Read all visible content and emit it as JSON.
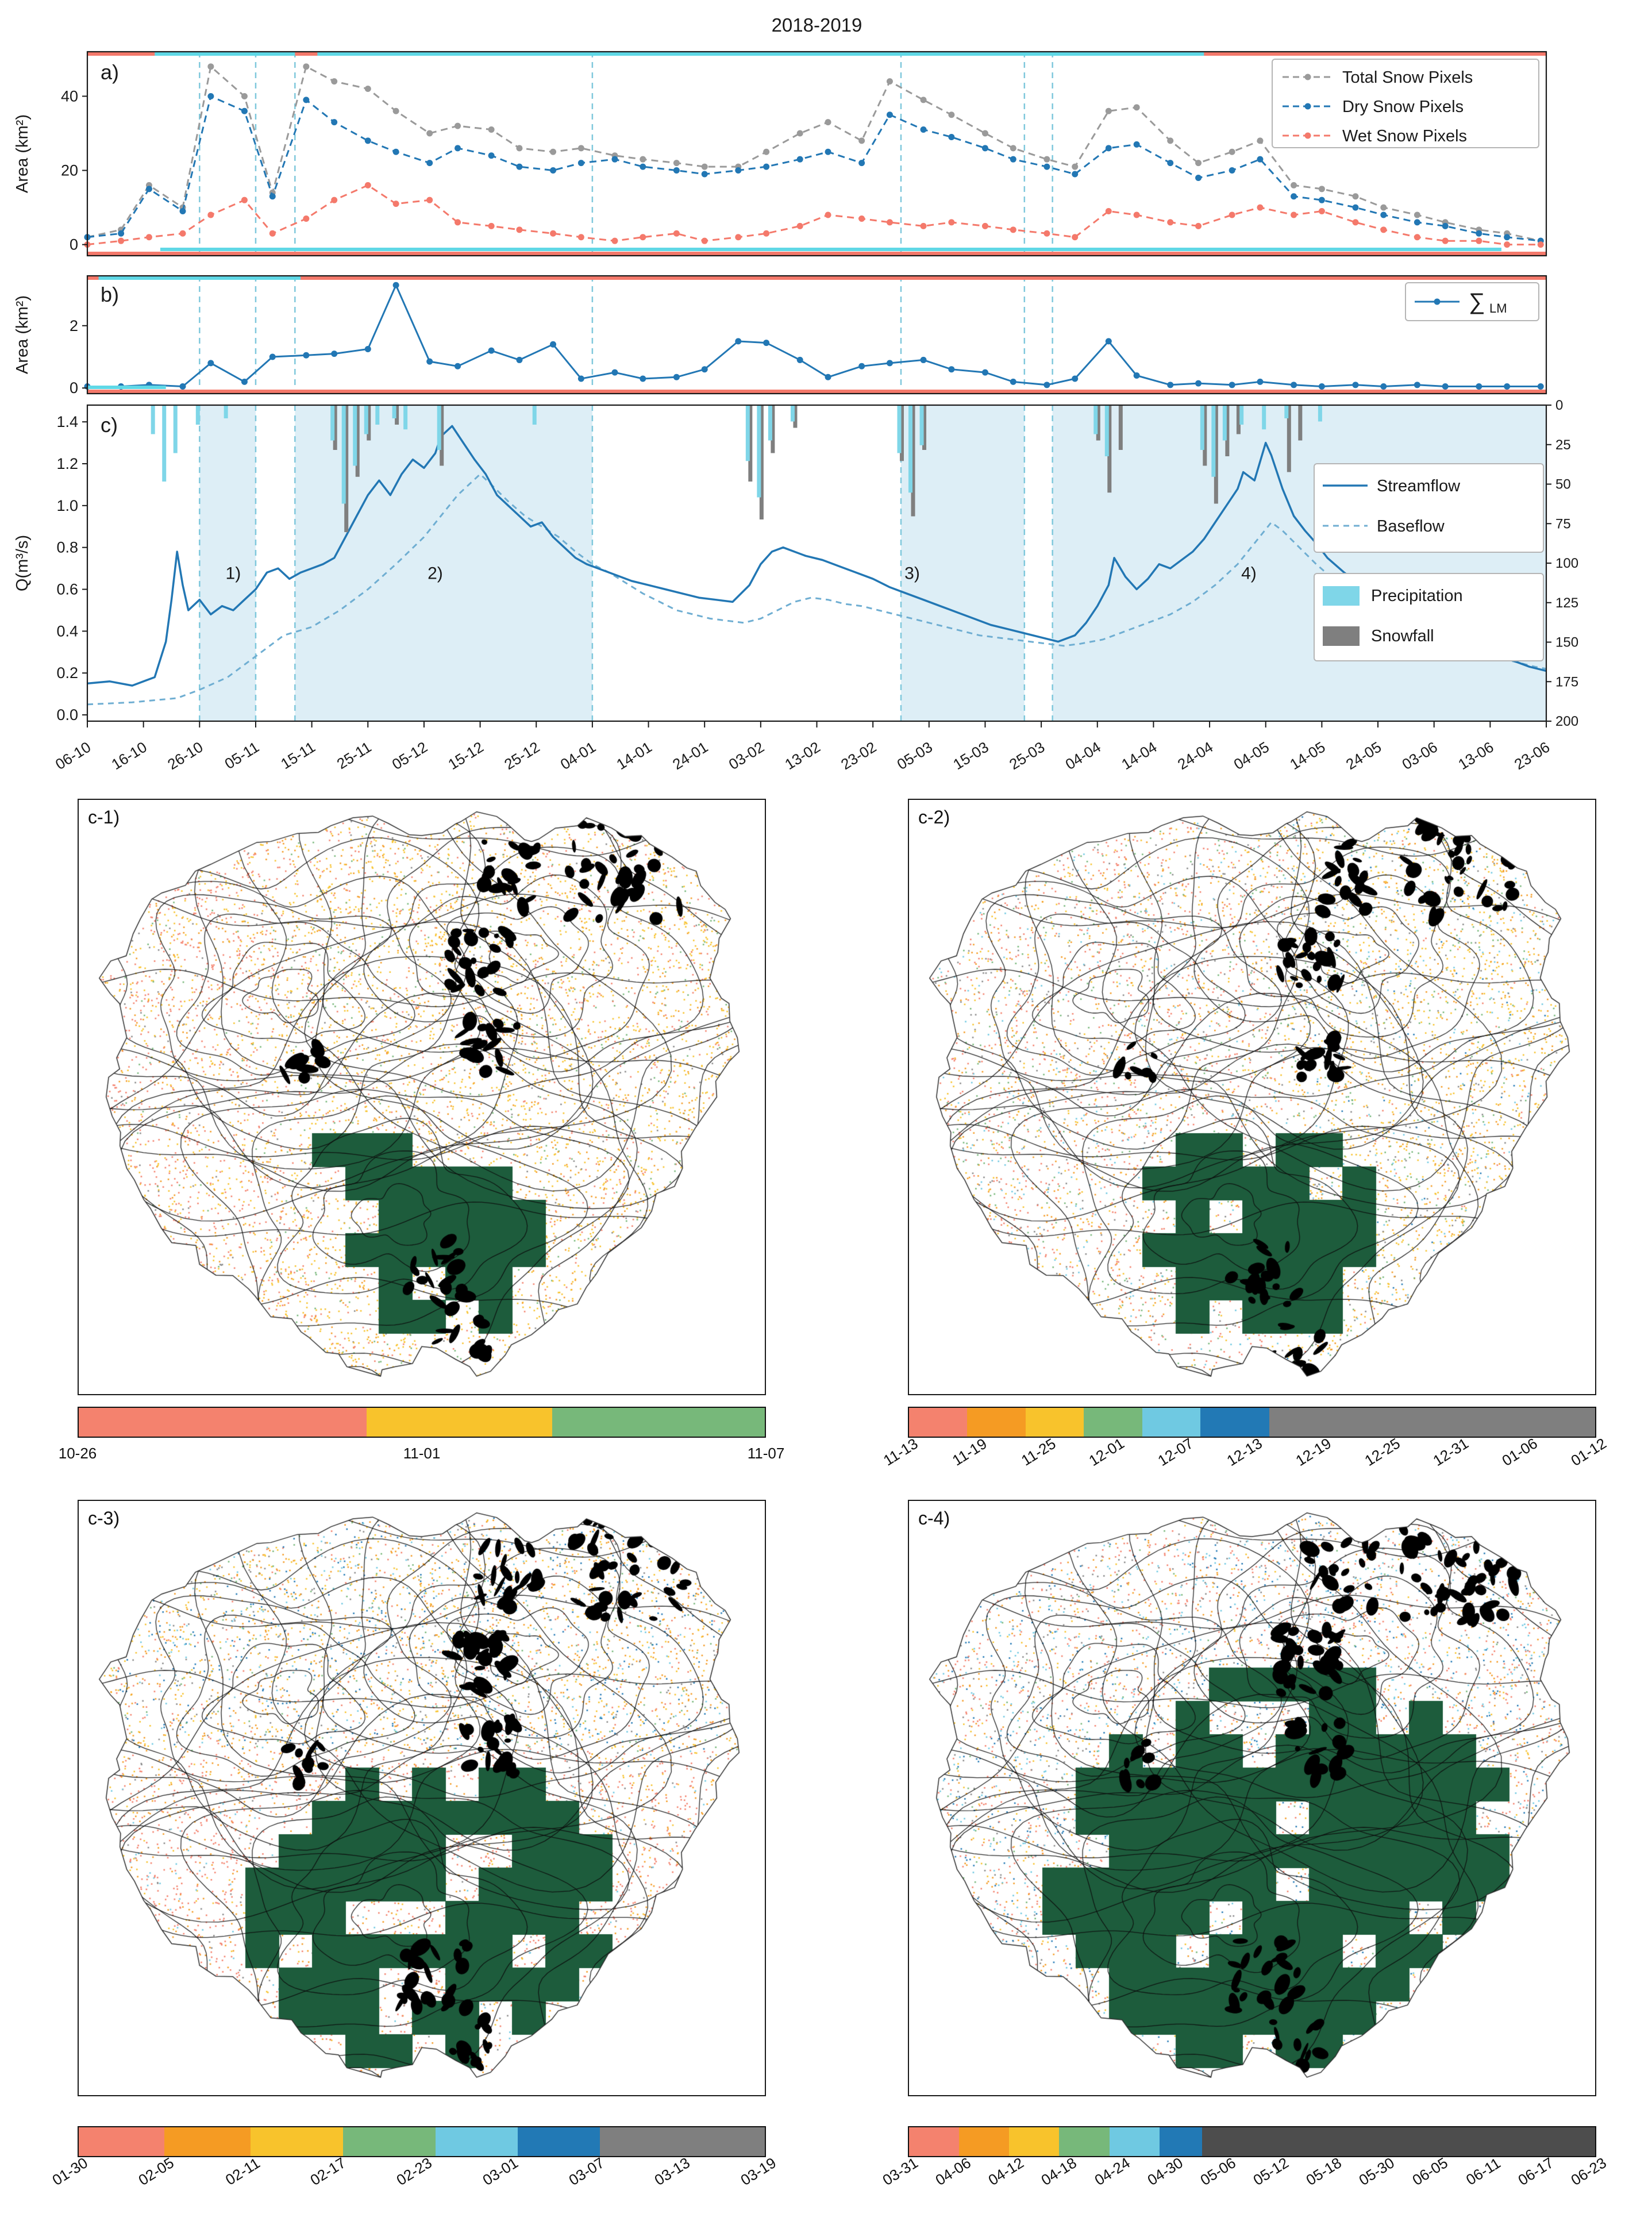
{
  "title": "2018-2019",
  "colors": {
    "salmon": "#f4826e",
    "orange": "#f59b23",
    "yellow": "#f8c32c",
    "green": "#77b87a",
    "cyan": "#6fc9e2",
    "blue": "#2279b5",
    "gray": "#8a8a8a",
    "darkgray": "#4d4d4d",
    "darkgreen": "#1d5c3c",
    "stream": "#2277b4",
    "baseflow": "#6faed2",
    "precip": "#7fd6e8",
    "snow": "#7f7f7f",
    "shade": "#ddeef6",
    "vline": "#7fc8dc",
    "red_bar": "#f4796b",
    "cyan_bar": "#5fd8e6",
    "total": "#9a9a9a"
  },
  "axes": {
    "xtick_labels": [
      "06-10",
      "16-10",
      "26-10",
      "05-11",
      "15-11",
      "25-11",
      "05-12",
      "15-12",
      "25-12",
      "04-01",
      "14-01",
      "24-01",
      "03-02",
      "13-02",
      "23-02",
      "05-03",
      "15-03",
      "25-03",
      "04-04",
      "14-04",
      "24-04",
      "04-05",
      "14-05",
      "24-05",
      "03-06",
      "13-06",
      "23-06"
    ]
  },
  "chart_data": [
    {
      "id": "a",
      "type": "line",
      "panel_label": "a)",
      "ylabel": "Area (km²)",
      "ylim": [
        0,
        50
      ],
      "yticks": [
        "0",
        "20",
        "40"
      ],
      "x_days": [
        0,
        6,
        11,
        17,
        22,
        28,
        33,
        39,
        44,
        50,
        55,
        61,
        66,
        72,
        77,
        83,
        88,
        94,
        99,
        105,
        110,
        116,
        121,
        127,
        132,
        138,
        143,
        149,
        154,
        160,
        165,
        171,
        176,
        182,
        187,
        193,
        198,
        204,
        209,
        215,
        220,
        226,
        231,
        237,
        242,
        248,
        253,
        259
      ],
      "series": [
        {
          "name": "Total Snow Pixels",
          "color": "#9a9a9a",
          "values": [
            2,
            4,
            16,
            10,
            48,
            40,
            14,
            48,
            44,
            42,
            36,
            30,
            32,
            31,
            26,
            25,
            26,
            24,
            23,
            22,
            21,
            21,
            25,
            30,
            33,
            28,
            44,
            39,
            35,
            30,
            26,
            23,
            21,
            36,
            37,
            28,
            22,
            25,
            28,
            16,
            15,
            13,
            10,
            8,
            6,
            4,
            3,
            1
          ]
        },
        {
          "name": "Dry Snow Pixels",
          "color": "#2277b4",
          "values": [
            2,
            3,
            15,
            9,
            40,
            36,
            13,
            39,
            33,
            28,
            25,
            22,
            26,
            24,
            21,
            20,
            22,
            23,
            21,
            20,
            19,
            20,
            21,
            23,
            25,
            22,
            35,
            31,
            29,
            26,
            23,
            21,
            19,
            26,
            27,
            22,
            18,
            20,
            23,
            13,
            12,
            10,
            8,
            6,
            5,
            3,
            2,
            1
          ]
        },
        {
          "name": "Wet Snow Pixels",
          "color": "#f4796b",
          "values": [
            0,
            1,
            2,
            3,
            8,
            12,
            3,
            7,
            12,
            16,
            11,
            12,
            6,
            5,
            4,
            3,
            2,
            1,
            2,
            3,
            1,
            2,
            3,
            5,
            8,
            7,
            6,
            5,
            6,
            5,
            4,
            3,
            2,
            9,
            8,
            6,
            5,
            8,
            10,
            8,
            9,
            6,
            4,
            2,
            1,
            1,
            0,
            0
          ]
        }
      ]
    },
    {
      "id": "b",
      "type": "line",
      "panel_label": "b)",
      "ylabel": "Area (km²)",
      "ylim": [
        0,
        3.5
      ],
      "yticks": [
        "0",
        "2"
      ],
      "legend_label": "∑ LM",
      "series": [
        {
          "name": "∑ LM",
          "color": "#2277b4",
          "values": [
            0.05,
            0.05,
            0.1,
            0.05,
            0.8,
            0.2,
            1.0,
            1.05,
            1.1,
            1.25,
            3.3,
            0.85,
            0.7,
            1.2,
            0.9,
            1.4,
            0.3,
            0.5,
            0.3,
            0.35,
            0.6,
            1.5,
            1.45,
            0.9,
            0.35,
            0.7,
            0.8,
            0.9,
            0.6,
            0.5,
            0.2,
            0.1,
            0.3,
            1.5,
            0.4,
            0.1,
            0.15,
            0.1,
            0.2,
            0.1,
            0.05,
            0.1,
            0.05,
            0.1,
            0.05,
            0.05,
            0.05,
            0.05
          ]
        }
      ]
    },
    {
      "id": "c",
      "type": "line",
      "panel_label": "c)",
      "ylabel": "Q(m³/s)",
      "ylim": [
        0.0,
        1.4
      ],
      "yticks": [
        "0.0",
        "0.2",
        "0.4",
        "0.6",
        "0.8",
        "1.0",
        "1.2",
        "1.4"
      ],
      "right_axis_ticks": [
        "0",
        "25",
        "50",
        "75",
        "100",
        "125",
        "150",
        "175",
        "200"
      ],
      "right_axis_max": 200,
      "legend": {
        "streamflow": "Streamflow",
        "baseflow": "Baseflow",
        "precipitation": "Precipitation",
        "snowfall": "Snowfall"
      },
      "streamflow": {
        "x": [
          0,
          4,
          8,
          12,
          14,
          15,
          16,
          17,
          18,
          20,
          22,
          24,
          26,
          28,
          30,
          32,
          34,
          36,
          38,
          40,
          42,
          44,
          46,
          48,
          50,
          52,
          54,
          56,
          58,
          60,
          62,
          63,
          65,
          67,
          69,
          71,
          73,
          75,
          77,
          79,
          81,
          83,
          85,
          87,
          89,
          91,
          94,
          97,
          100,
          103,
          106,
          109,
          112,
          115,
          118,
          120,
          122,
          124,
          126,
          128,
          131,
          134,
          137,
          140,
          143,
          146,
          149,
          152,
          155,
          158,
          161,
          164,
          167,
          170,
          173,
          176,
          178,
          180,
          182,
          183,
          185,
          187,
          189,
          191,
          193,
          195,
          197,
          199,
          201,
          203,
          205,
          206,
          208,
          210,
          211,
          213,
          215,
          217,
          219,
          221,
          224,
          227,
          230,
          233,
          236,
          239,
          242,
          245,
          248,
          251,
          254,
          257,
          260
        ],
        "y": [
          0.15,
          0.16,
          0.14,
          0.18,
          0.35,
          0.55,
          0.78,
          0.62,
          0.5,
          0.55,
          0.48,
          0.52,
          0.5,
          0.55,
          0.6,
          0.68,
          0.7,
          0.65,
          0.68,
          0.7,
          0.72,
          0.75,
          0.85,
          0.95,
          1.05,
          1.12,
          1.05,
          1.15,
          1.22,
          1.18,
          1.25,
          1.33,
          1.38,
          1.3,
          1.22,
          1.15,
          1.05,
          1.0,
          0.95,
          0.9,
          0.92,
          0.85,
          0.8,
          0.75,
          0.72,
          0.7,
          0.67,
          0.64,
          0.62,
          0.6,
          0.58,
          0.56,
          0.55,
          0.54,
          0.62,
          0.72,
          0.78,
          0.8,
          0.78,
          0.76,
          0.74,
          0.71,
          0.68,
          0.65,
          0.61,
          0.58,
          0.55,
          0.52,
          0.49,
          0.46,
          0.43,
          0.41,
          0.39,
          0.37,
          0.35,
          0.38,
          0.44,
          0.52,
          0.62,
          0.75,
          0.66,
          0.6,
          0.65,
          0.72,
          0.7,
          0.74,
          0.78,
          0.84,
          0.92,
          1.0,
          1.08,
          1.16,
          1.12,
          1.3,
          1.24,
          1.08,
          0.95,
          0.88,
          0.82,
          0.75,
          0.68,
          0.62,
          0.56,
          0.51,
          0.46,
          0.42,
          0.38,
          0.35,
          0.32,
          0.29,
          0.26,
          0.23,
          0.21
        ]
      },
      "baseflow": {
        "x": [
          0,
          8,
          16,
          20,
          25,
          30,
          35,
          40,
          45,
          50,
          55,
          60,
          63,
          66,
          68,
          70,
          72,
          75,
          78,
          81,
          84,
          87,
          90,
          93,
          96,
          99,
          102,
          105,
          108,
          111,
          114,
          117,
          120,
          123,
          126,
          129,
          132,
          135,
          138,
          141,
          144,
          147,
          150,
          153,
          156,
          159,
          162,
          165,
          168,
          171,
          174,
          177,
          181,
          185,
          189,
          193,
          197,
          201,
          205,
          208,
          211,
          213,
          216,
          219,
          222,
          225,
          228,
          231,
          234,
          237,
          240,
          243,
          246,
          249,
          252,
          255,
          258,
          260
        ],
        "y": [
          0.05,
          0.06,
          0.08,
          0.12,
          0.18,
          0.28,
          0.38,
          0.42,
          0.5,
          0.6,
          0.72,
          0.85,
          0.95,
          1.05,
          1.1,
          1.15,
          1.1,
          1.02,
          0.95,
          0.9,
          0.85,
          0.78,
          0.72,
          0.68,
          0.63,
          0.58,
          0.54,
          0.5,
          0.48,
          0.46,
          0.45,
          0.44,
          0.46,
          0.5,
          0.54,
          0.56,
          0.55,
          0.53,
          0.52,
          0.5,
          0.48,
          0.46,
          0.44,
          0.42,
          0.4,
          0.38,
          0.37,
          0.36,
          0.35,
          0.34,
          0.33,
          0.34,
          0.36,
          0.4,
          0.44,
          0.48,
          0.54,
          0.62,
          0.72,
          0.82,
          0.92,
          0.88,
          0.8,
          0.72,
          0.65,
          0.58,
          0.52,
          0.47,
          0.43,
          0.4,
          0.37,
          0.34,
          0.31,
          0.29,
          0.27,
          0.25,
          0.23,
          0.22
        ]
      },
      "precipitation_mm": [
        [
          12,
          18
        ],
        [
          14,
          48
        ],
        [
          16,
          30
        ],
        [
          20,
          12
        ],
        [
          25,
          8
        ],
        [
          44,
          22
        ],
        [
          46,
          62
        ],
        [
          48,
          38
        ],
        [
          50,
          18
        ],
        [
          52,
          12
        ],
        [
          55,
          8
        ],
        [
          57,
          15
        ],
        [
          63,
          28
        ],
        [
          80,
          12
        ],
        [
          118,
          35
        ],
        [
          120,
          58
        ],
        [
          122,
          22
        ],
        [
          126,
          10
        ],
        [
          145,
          30
        ],
        [
          147,
          55
        ],
        [
          149,
          25
        ],
        [
          180,
          18
        ],
        [
          182,
          32
        ],
        [
          199,
          28
        ],
        [
          201,
          45
        ],
        [
          203,
          22
        ],
        [
          206,
          12
        ],
        [
          210,
          15
        ],
        [
          214,
          8
        ],
        [
          220,
          10
        ]
      ],
      "snowfall_mm": [
        [
          44,
          28
        ],
        [
          46,
          80
        ],
        [
          48,
          45
        ],
        [
          50,
          22
        ],
        [
          55,
          12
        ],
        [
          63,
          38
        ],
        [
          118,
          48
        ],
        [
          120,
          72
        ],
        [
          122,
          30
        ],
        [
          126,
          14
        ],
        [
          145,
          35
        ],
        [
          147,
          70
        ],
        [
          149,
          28
        ],
        [
          180,
          22
        ],
        [
          182,
          55
        ],
        [
          184,
          28
        ],
        [
          199,
          38
        ],
        [
          201,
          62
        ],
        [
          203,
          32
        ],
        [
          205,
          18
        ],
        [
          214,
          42
        ],
        [
          216,
          22
        ]
      ],
      "shaded_regions": [
        [
          20,
          30
        ],
        [
          37,
          90
        ],
        [
          145,
          167
        ],
        [
          172,
          260
        ]
      ],
      "boundary_days": [
        20,
        30,
        37,
        90,
        145,
        167,
        172
      ],
      "region_labels": [
        {
          "text": "1)",
          "day": 26,
          "q": 0.65
        },
        {
          "text": "2)",
          "day": 62,
          "q": 0.65
        },
        {
          "text": "3)",
          "day": 147,
          "q": 0.65
        },
        {
          "text": "4)",
          "day": 207,
          "q": 0.65
        }
      ],
      "indicator_bars": {
        "a_top_cyan": [
          [
            12,
            37
          ],
          [
            41,
            199
          ]
        ],
        "a_bottom_cyan": [
          [
            13,
            252
          ]
        ],
        "b_top_cyan": [
          [
            2,
            38
          ]
        ],
        "b_bottom_cyan": [
          [
            0,
            14
          ]
        ]
      }
    }
  ],
  "maps": [
    {
      "label": "c-1)",
      "colorbar": {
        "rotated": false,
        "segments": [
          {
            "color": "#f4826e",
            "frac": 0.42
          },
          {
            "color": "#f8c32c",
            "frac": 0.27
          },
          {
            "color": "#77b87a",
            "frac": 0.31
          }
        ],
        "labels": [
          "10-26",
          "11-01",
          "11-07"
        ]
      }
    },
    {
      "label": "c-2)",
      "colorbar": {
        "rotated": true,
        "segments": [
          {
            "color": "#f4826e",
            "frac": 0.085
          },
          {
            "color": "#f59b23",
            "frac": 0.085
          },
          {
            "color": "#f8c32c",
            "frac": 0.085
          },
          {
            "color": "#77b87a",
            "frac": 0.085
          },
          {
            "color": "#6fc9e2",
            "frac": 0.085
          },
          {
            "color": "#2279b5",
            "frac": 0.1
          },
          {
            "color": "#7f7f7f",
            "frac": 0.475
          }
        ],
        "labels": [
          "11-13",
          "11-19",
          "11-25",
          "12-01",
          "12-07",
          "12-13",
          "12-19",
          "12-25",
          "12-31",
          "01-06",
          "01-12"
        ]
      }
    },
    {
      "label": "c-3)",
      "colorbar": {
        "rotated": true,
        "segments": [
          {
            "color": "#f4826e",
            "frac": 0.125
          },
          {
            "color": "#f59b23",
            "frac": 0.125
          },
          {
            "color": "#f8c32c",
            "frac": 0.135
          },
          {
            "color": "#77b87a",
            "frac": 0.135
          },
          {
            "color": "#6fc9e2",
            "frac": 0.12
          },
          {
            "color": "#2279b5",
            "frac": 0.12
          },
          {
            "color": "#7f7f7f",
            "frac": 0.24
          }
        ],
        "labels": [
          "01-30",
          "02-05",
          "02-11",
          "02-17",
          "02-23",
          "03-01",
          "03-07",
          "03-13",
          "03-19"
        ]
      }
    },
    {
      "label": "c-4)",
      "colorbar": {
        "rotated": true,
        "segments": [
          {
            "color": "#f4826e",
            "frac": 0.073
          },
          {
            "color": "#f59b23",
            "frac": 0.073
          },
          {
            "color": "#f8c32c",
            "frac": 0.073
          },
          {
            "color": "#77b87a",
            "frac": 0.073
          },
          {
            "color": "#6fc9e2",
            "frac": 0.073
          },
          {
            "color": "#2279b5",
            "frac": 0.062
          },
          {
            "color": "#4d4d4d",
            "frac": 0.573
          }
        ],
        "labels": [
          "03-31",
          "04-06",
          "04-12",
          "04-18",
          "04-24",
          "04-30",
          "05-06",
          "05-12",
          "05-18",
          "05-30",
          "06-05",
          "06-11",
          "06-17",
          "06-23"
        ]
      }
    }
  ]
}
